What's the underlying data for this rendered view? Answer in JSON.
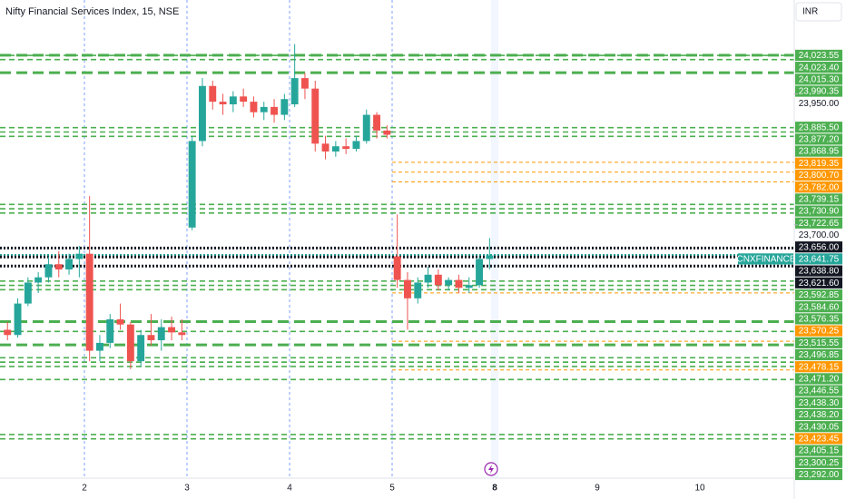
{
  "chart_data": {
    "type": "candlestick",
    "title": "Nifty Financial Services Index, 15, NSE",
    "currency": "INR",
    "up_color": "#26a69a",
    "down_color": "#ef5350",
    "ylim": [
      23217,
      24129
    ],
    "yticks": [
      {
        "value": 23950,
        "label": "23,950.00"
      },
      {
        "value": 23700,
        "label": "23,700.00"
      }
    ],
    "sessions": [
      {
        "label": null,
        "candles": [
          [
            23500,
            23515,
            23480,
            23490
          ],
          [
            23490,
            23560,
            23485,
            23550
          ],
          [
            23550,
            23600,
            23545,
            23590
          ],
          [
            23590,
            23610,
            23570,
            23600
          ],
          [
            23600,
            23640,
            23590,
            23625
          ],
          [
            23625,
            23650,
            23600,
            23615
          ],
          [
            23615,
            23645,
            23605,
            23635
          ],
          [
            23635,
            23660,
            23600,
            23645
          ]
        ]
      },
      {
        "label": "2",
        "candles": [
          [
            23645,
            23755,
            23440,
            23460
          ],
          [
            23460,
            23490,
            23440,
            23475
          ],
          [
            23475,
            23530,
            23465,
            23520
          ],
          [
            23520,
            23550,
            23500,
            23510
          ],
          [
            23510,
            23515,
            23425,
            23440
          ],
          [
            23440,
            23500,
            23430,
            23490
          ],
          [
            23490,
            23530,
            23470,
            23480
          ],
          [
            23480,
            23520,
            23460,
            23505
          ],
          [
            23505,
            23525,
            23480,
            23495
          ],
          [
            23495,
            23520,
            23480,
            23490
          ]
        ]
      },
      {
        "label": "3",
        "candles": [
          [
            23695,
            23870,
            23690,
            23860
          ],
          [
            23860,
            23980,
            23850,
            23965
          ],
          [
            23965,
            23975,
            23920,
            23935
          ],
          [
            23935,
            23950,
            23910,
            23930
          ],
          [
            23930,
            23955,
            23915,
            23945
          ],
          [
            23945,
            23960,
            23925,
            23935
          ],
          [
            23935,
            23945,
            23905,
            23915
          ],
          [
            23915,
            23935,
            23900,
            23925
          ],
          [
            23925,
            23940,
            23895,
            23910
          ],
          [
            23910,
            23950,
            23900,
            23940
          ]
        ]
      },
      {
        "label": "4",
        "candles": [
          [
            23930,
            24045,
            23925,
            23980
          ],
          [
            23980,
            23990,
            23940,
            23960
          ],
          [
            23960,
            23975,
            23840,
            23855
          ],
          [
            23855,
            23870,
            23825,
            23840
          ],
          [
            23840,
            23860,
            23830,
            23850
          ],
          [
            23850,
            23865,
            23835,
            23845
          ],
          [
            23845,
            23870,
            23840,
            23860
          ],
          [
            23860,
            23920,
            23855,
            23910
          ],
          [
            23910,
            23915,
            23865,
            23880
          ],
          [
            23880,
            23890,
            23865,
            23872
          ]
        ]
      },
      {
        "label": "5",
        "candles": [
          [
            23640,
            23720,
            23580,
            23595
          ],
          [
            23595,
            23610,
            23500,
            23560
          ],
          [
            23560,
            23600,
            23550,
            23590
          ],
          [
            23590,
            23620,
            23580,
            23605
          ],
          [
            23605,
            23615,
            23575,
            23585
          ],
          [
            23585,
            23600,
            23575,
            23595
          ],
          [
            23595,
            23605,
            23570,
            23580
          ],
          [
            23580,
            23600,
            23570,
            23585
          ],
          [
            23585,
            23640,
            23580,
            23635
          ],
          [
            23635,
            23675,
            23615,
            23641.75
          ]
        ]
      },
      {
        "label": "8",
        "candles": []
      },
      {
        "label": "9",
        "candles": []
      },
      {
        "label": "10",
        "candles": []
      }
    ],
    "levels": [
      {
        "value": 24023.55,
        "label": "24,023.55",
        "color": "#4caf50",
        "style": "long"
      },
      {
        "value": 24023.4,
        "label": "24,023.40",
        "color": "#4caf50",
        "style": "short"
      },
      {
        "value": 24015.3,
        "label": "24,015.30",
        "color": "#4caf50",
        "style": "short"
      },
      {
        "value": 23990.35,
        "label": "23,990.35",
        "color": "#4caf50",
        "style": "long"
      },
      {
        "value": 23885.5,
        "label": "23,885.50",
        "color": "#4caf50",
        "style": "short"
      },
      {
        "value": 23877.2,
        "label": "23,877.20",
        "color": "#4caf50",
        "style": "short"
      },
      {
        "value": 23868.95,
        "label": "23,868.95",
        "color": "#4caf50",
        "style": "short"
      },
      {
        "value": 23819.35,
        "label": "23,819.35",
        "color": "#ff9800",
        "style": "thin"
      },
      {
        "value": 23800.7,
        "label": "23,800.70",
        "color": "#ff9800",
        "style": "thin"
      },
      {
        "value": 23782.0,
        "label": "23,782.00",
        "color": "#ff9800",
        "style": "thin"
      },
      {
        "value": 23739.15,
        "label": "23,739.15",
        "color": "#4caf50",
        "style": "short"
      },
      {
        "value": 23730.9,
        "label": "23,730.90",
        "color": "#4caf50",
        "style": "short"
      },
      {
        "value": 23722.65,
        "label": "23,722.65",
        "color": "#4caf50",
        "style": "short"
      },
      {
        "value": 23656.0,
        "label": "23,656.00",
        "color": "#131722",
        "style": "dotted"
      },
      {
        "value": 23641.75,
        "label": "23,641.75",
        "color": "#26a69a",
        "style": "dotted",
        "name": "CNXFINANCE"
      },
      {
        "value": 23638.8,
        "label": "23,638.80",
        "color": "#131722",
        "style": "dotted"
      },
      {
        "value": 23621.6,
        "label": "23,621.60",
        "color": "#131722",
        "style": "dotted"
      },
      {
        "value": 23592.85,
        "label": "23,592.85",
        "color": "#4caf50",
        "style": "short"
      },
      {
        "value": 23584.6,
        "label": "23,584.60",
        "color": "#4caf50",
        "style": "short"
      },
      {
        "value": 23576.35,
        "label": "23,576.35",
        "color": "#4caf50",
        "style": "short"
      },
      {
        "value": 23570.25,
        "label": "23,570.25",
        "color": "#ff9800",
        "style": "thin"
      },
      {
        "value": 23515.55,
        "label": "23,515.55",
        "color": "#4caf50",
        "style": "long"
      },
      {
        "value": 23496.85,
        "label": "23,496.85",
        "color": "#4caf50",
        "style": "short"
      },
      {
        "value": 23478.15,
        "label": "23,478.15",
        "color": "#ff9800",
        "style": "thin"
      },
      {
        "value": 23471.2,
        "label": "23,471.20",
        "color": "#4caf50",
        "style": "long"
      },
      {
        "value": 23446.55,
        "label": "23,446.55",
        "color": "#4caf50",
        "style": "short"
      },
      {
        "value": 23438.3,
        "label": "23,438.30",
        "color": "#4caf50",
        "style": "short"
      },
      {
        "value": 23438.2,
        "label": "23,438.20",
        "color": "#4caf50",
        "style": "short"
      },
      {
        "value": 23430.05,
        "label": "23,430.05",
        "color": "#4caf50",
        "style": "short"
      },
      {
        "value": 23423.45,
        "label": "23,423.45",
        "color": "#ff9800",
        "style": "thin"
      },
      {
        "value": 23405.15,
        "label": "23,405.15",
        "color": "#4caf50",
        "style": "short"
      },
      {
        "value": 23300.25,
        "label": "23,300.25",
        "color": "#4caf50",
        "style": "short"
      },
      {
        "value": 23292.0,
        "label": "23,292.00",
        "color": "#4caf50",
        "style": "short"
      }
    ]
  }
}
